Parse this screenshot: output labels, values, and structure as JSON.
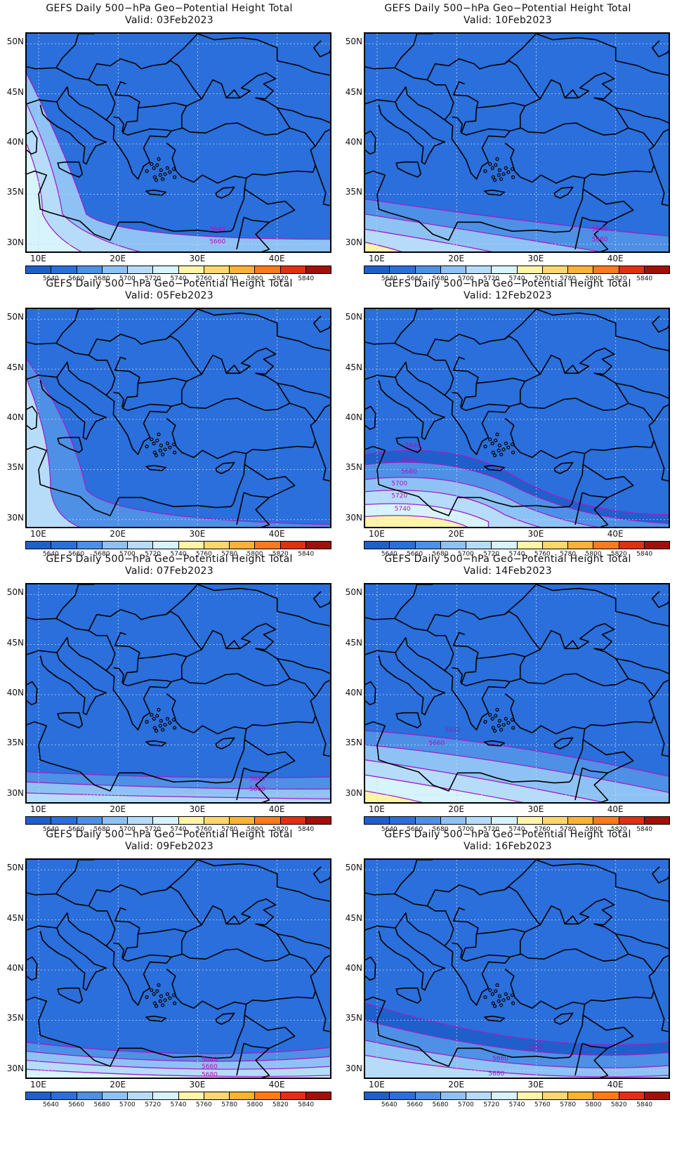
{
  "panels": [
    {
      "title": "GEFS Daily 500−hPa Geo−Potential Height Total",
      "valid": "Valid: 03Feb2023",
      "contours": [
        {
          "label": "5640",
          "label_at": [
            32.5,
            31.3
          ]
        },
        {
          "label": "5660",
          "label_at": [
            32.5,
            30.1
          ]
        }
      ]
    },
    {
      "title": "GEFS Daily 500−hPa Geo−Potential Height Total",
      "valid": "Valid: 10Feb2023",
      "contours": [
        {
          "label": "5640",
          "label_at": [
            38.0,
            31.3
          ]
        },
        {
          "label": "5660",
          "label_at": [
            38.0,
            30.3
          ]
        }
      ]
    },
    {
      "title": "GEFS Daily 500−hPa Geo−Potential Height Total",
      "valid": "Valid: 05Feb2023",
      "contours": []
    },
    {
      "title": "GEFS Daily 500−hPa Geo−Potential Height Total",
      "valid": "Valid: 12Feb2023",
      "contours": [
        {
          "label": "5640",
          "label_at": [
            14.5,
            37.2
          ]
        },
        {
          "label": "5660",
          "label_at": [
            14.0,
            35.8
          ]
        },
        {
          "label": "5680",
          "label_at": [
            14.0,
            34.6
          ]
        },
        {
          "label": "5700",
          "label_at": [
            12.8,
            33.4
          ]
        },
        {
          "label": "5720",
          "label_at": [
            12.8,
            32.2
          ]
        },
        {
          "label": "5740",
          "label_at": [
            13.2,
            30.9
          ]
        }
      ]
    },
    {
      "title": "GEFS Daily 500−hPa Geo−Potential Height Total",
      "valid": "Valid: 07Feb2023",
      "contours": [
        {
          "label": "5640",
          "label_at": [
            37.5,
            31.4
          ]
        },
        {
          "label": "5660",
          "label_at": [
            37.5,
            30.4
          ]
        }
      ]
    },
    {
      "title": "GEFS Daily 500−hPa Geo−Potential Height Total",
      "valid": "Valid: 14Feb2023",
      "contours": [
        {
          "label": "5640",
          "label_at": [
            19.5,
            36.3
          ]
        },
        {
          "label": "5660",
          "label_at": [
            17.5,
            35.0
          ]
        }
      ]
    },
    {
      "title": "GEFS Daily 500−hPa Geo−Potential Height Total",
      "valid": "Valid: 09Feb2023",
      "contours": [
        {
          "label": "5640",
          "label_at": [
            31.5,
            30.9
          ]
        },
        {
          "label": "5660",
          "label_at": [
            31.5,
            30.2
          ]
        },
        {
          "label": "5680",
          "label_at": [
            31.5,
            29.4
          ]
        }
      ]
    },
    {
      "title": "GEFS Daily 500−hPa Geo−Potential Height Total",
      "valid": "Valid: 16Feb2023",
      "contours": [
        {
          "label": "5640",
          "label_at": [
            30.0,
            32.1
          ]
        },
        {
          "label": "5660",
          "label_at": [
            25.5,
            31.0
          ]
        },
        {
          "label": "5680",
          "label_at": [
            25.0,
            29.5
          ]
        }
      ]
    }
  ],
  "lat_labels": [
    "50N",
    "45N",
    "40N",
    "35N",
    "30N"
  ],
  "lat_values": [
    50,
    45,
    40,
    35,
    30
  ],
  "lon_labels": [
    "10E",
    "20E",
    "30E",
    "40E"
  ],
  "lon_values": [
    10,
    20,
    30,
    40
  ],
  "colorbar": {
    "labels": [
      "5640",
      "5660",
      "5680",
      "5700",
      "5720",
      "5740",
      "5760",
      "5780",
      "5800",
      "5820",
      "5840"
    ],
    "colors": [
      "#1f5fcc",
      "#2a6fdb",
      "#4d90e6",
      "#8ec2f5",
      "#b7dcfa",
      "#d7f3fb",
      "#fff5a8",
      "#ffd76e",
      "#ffb235",
      "#ff7a1a",
      "#e03010",
      "#a01008"
    ]
  },
  "colors": {
    "contour": "#a020c8",
    "label": "#b010c0",
    "coast": "#000000",
    "grid": "#c8d6f0"
  }
}
